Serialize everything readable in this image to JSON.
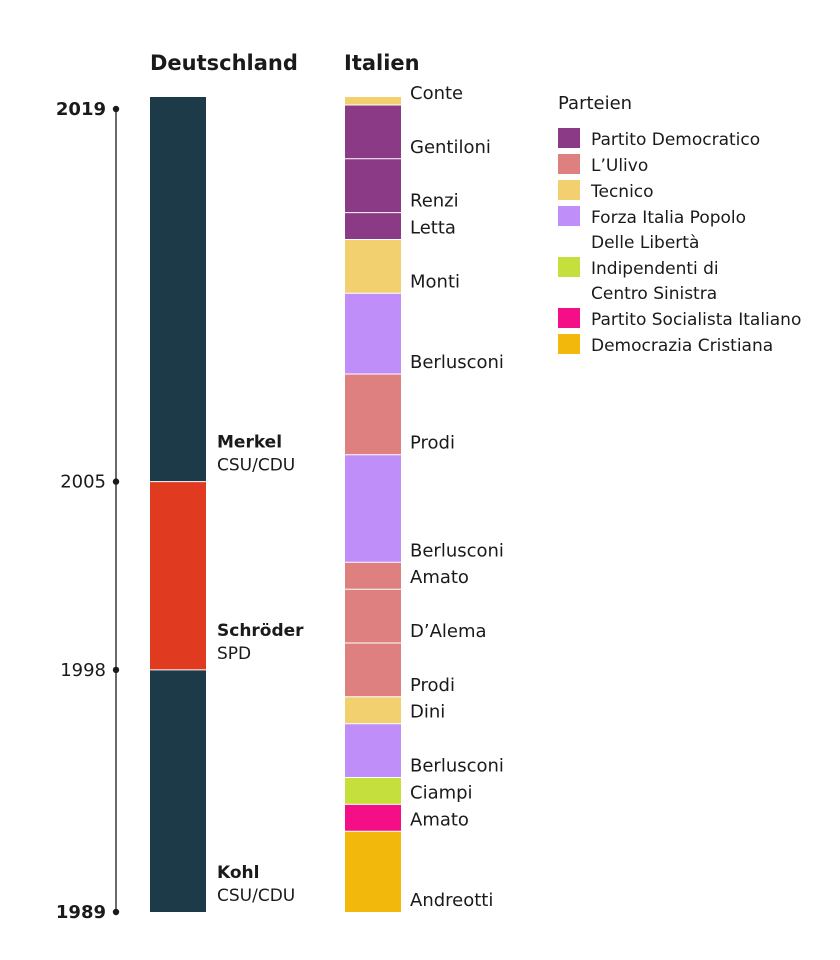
{
  "chart_data": {
    "type": "bar",
    "columns": [
      {
        "title": "Deutschland"
      },
      {
        "title": "Italien"
      }
    ],
    "year_axis": {
      "range": [
        1989,
        2019
      ],
      "ticks": [
        {
          "label": "2019",
          "value": 2019,
          "bold": true
        },
        {
          "label": "2005",
          "value": 2005,
          "bold": false
        },
        {
          "label": "1998",
          "value": 1998,
          "bold": false
        },
        {
          "label": "1989",
          "value": 1989,
          "bold": true
        }
      ]
    },
    "germany": [
      {
        "name": "Kohl",
        "party": "CSU/CDU",
        "start": 1989,
        "end": 1998,
        "color": "#1c3a48"
      },
      {
        "name": "Schröder",
        "party": "SPD",
        "start": 1998,
        "end": 2005,
        "color": "#e03a20"
      },
      {
        "name": "Merkel",
        "party": "CSU/CDU",
        "start": 2005,
        "end": 2020,
        "color": "#1c3a48"
      }
    ],
    "italy": [
      {
        "name": "Andreotti",
        "party": "Democrazia Cristiana",
        "start": 1989,
        "end": 1992,
        "color": "#f2b90c"
      },
      {
        "name": "Amato",
        "party": "Partito Socialista Italiano",
        "start": 1992,
        "end": 1993,
        "color": "#f50f86"
      },
      {
        "name": "Ciampi",
        "party": "Indipendenti di Centro Sinistra",
        "start": 1993,
        "end": 1994,
        "color": "#c5df3c"
      },
      {
        "name": "Berlusconi",
        "party": "Forza Italia Popolo Delle Libertà",
        "start": 1994,
        "end": 1996,
        "color": "#bf8ef8"
      },
      {
        "name": "Dini",
        "party": "Tecnico",
        "start": 1996,
        "end": 1997,
        "color": "#f2d070"
      },
      {
        "name": "Prodi",
        "party": "L’Ulivo",
        "start": 1997,
        "end": 1999,
        "color": "#df8080"
      },
      {
        "name": "D’Alema",
        "party": "L’Ulivo",
        "start": 1999,
        "end": 2001,
        "color": "#df8080"
      },
      {
        "name": "Amato",
        "party": "L’Ulivo",
        "start": 2001,
        "end": 2002,
        "color": "#df8080"
      },
      {
        "name": "Berlusconi",
        "party": "Forza Italia Popolo Delle Libertà",
        "start": 2002,
        "end": 2006,
        "color": "#bf8ef8"
      },
      {
        "name": "Prodi",
        "party": "L’Ulivo",
        "start": 2006,
        "end": 2009,
        "color": "#df8080"
      },
      {
        "name": "Berlusconi",
        "party": "Forza Italia Popolo Delle Libertà",
        "start": 2009,
        "end": 2012,
        "color": "#bf8ef8"
      },
      {
        "name": "Monti",
        "party": "Tecnico",
        "start": 2012,
        "end": 2014,
        "color": "#f2d070"
      },
      {
        "name": "Letta",
        "party": "Partito Democratico",
        "start": 2014,
        "end": 2015,
        "color": "#8b3b85"
      },
      {
        "name": "Renzi",
        "party": "Partito Democratico",
        "start": 2015,
        "end": 2017,
        "color": "#8b3b85"
      },
      {
        "name": "Gentiloni",
        "party": "Partito Democratico",
        "start": 2017,
        "end": 2019,
        "color": "#8b3b85"
      },
      {
        "name": "Conte",
        "party": "Tecnico",
        "start": 2019,
        "end": 2020,
        "color": "#f2d070"
      }
    ],
    "legend": {
      "title": "Parteien",
      "placement": "top-right",
      "items": [
        {
          "lines": [
            "Partito Democratico"
          ],
          "color": "#8b3b85"
        },
        {
          "lines": [
            "L’Ulivo"
          ],
          "color": "#df8080"
        },
        {
          "lines": [
            "Tecnico"
          ],
          "color": "#f2d070"
        },
        {
          "lines": [
            "Forza Italia Popolo",
            "Delle Libertà"
          ],
          "color": "#bf8ef8"
        },
        {
          "lines": [
            "Indipendenti di",
            "Centro Sinistra"
          ],
          "color": "#c5df3c"
        },
        {
          "lines": [
            "Partito Socialista Italiano"
          ],
          "color": "#f50f86"
        },
        {
          "lines": [
            "Democrazia Cristiana"
          ],
          "color": "#f2b90c"
        }
      ]
    }
  }
}
